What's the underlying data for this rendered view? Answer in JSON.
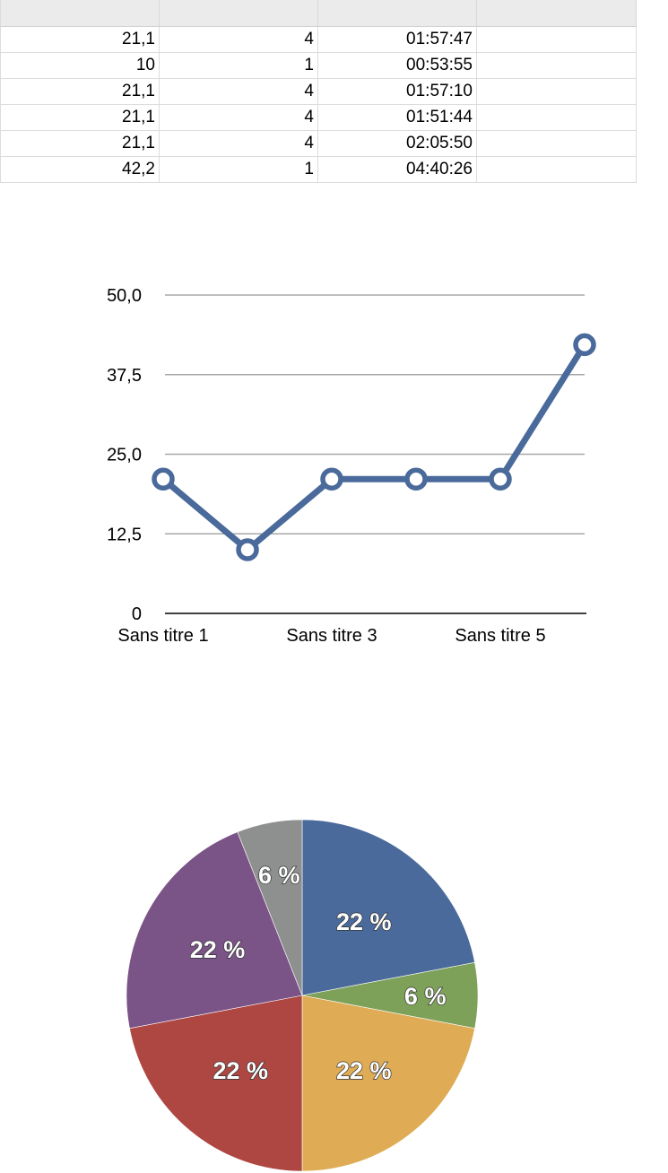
{
  "table": {
    "rows": [
      [
        "21,1",
        "4",
        "01:57:47",
        ""
      ],
      [
        "10",
        "1",
        "00:53:55",
        ""
      ],
      [
        "21,1",
        "4",
        "01:57:10",
        ""
      ],
      [
        "21,1",
        "4",
        "01:51:44",
        ""
      ],
      [
        "21,1",
        "4",
        "02:05:50",
        ""
      ],
      [
        "42,2",
        "1",
        "04:40:26",
        ""
      ]
    ]
  },
  "chart_data": [
    {
      "type": "line",
      "categories": [
        "Sans titre 1",
        "",
        "Sans titre 3",
        "",
        "Sans titre 5",
        ""
      ],
      "values": [
        21.1,
        10,
        21.1,
        21.1,
        21.1,
        42.2
      ],
      "ylim": [
        0,
        50
      ],
      "yticks": [
        0,
        12.5,
        25,
        37.5,
        50
      ],
      "ytick_labels": [
        "0",
        "12,5",
        "25,0",
        "37,5",
        "50,0"
      ],
      "xtick_labels": [
        "Sans titre 1",
        "Sans titre 3",
        "Sans titre 5"
      ],
      "grid": true,
      "color": "#4a6a9b"
    },
    {
      "type": "pie",
      "values": [
        22,
        6,
        22,
        22,
        22,
        6
      ],
      "labels": [
        "22 %",
        "6 %",
        "22 %",
        "22 %",
        "22 %",
        "6 %"
      ],
      "colors": [
        "#4a6a9b",
        "#7ea15a",
        "#dfac55",
        "#ae4742",
        "#7a5387",
        "#8e8f8f"
      ]
    }
  ]
}
